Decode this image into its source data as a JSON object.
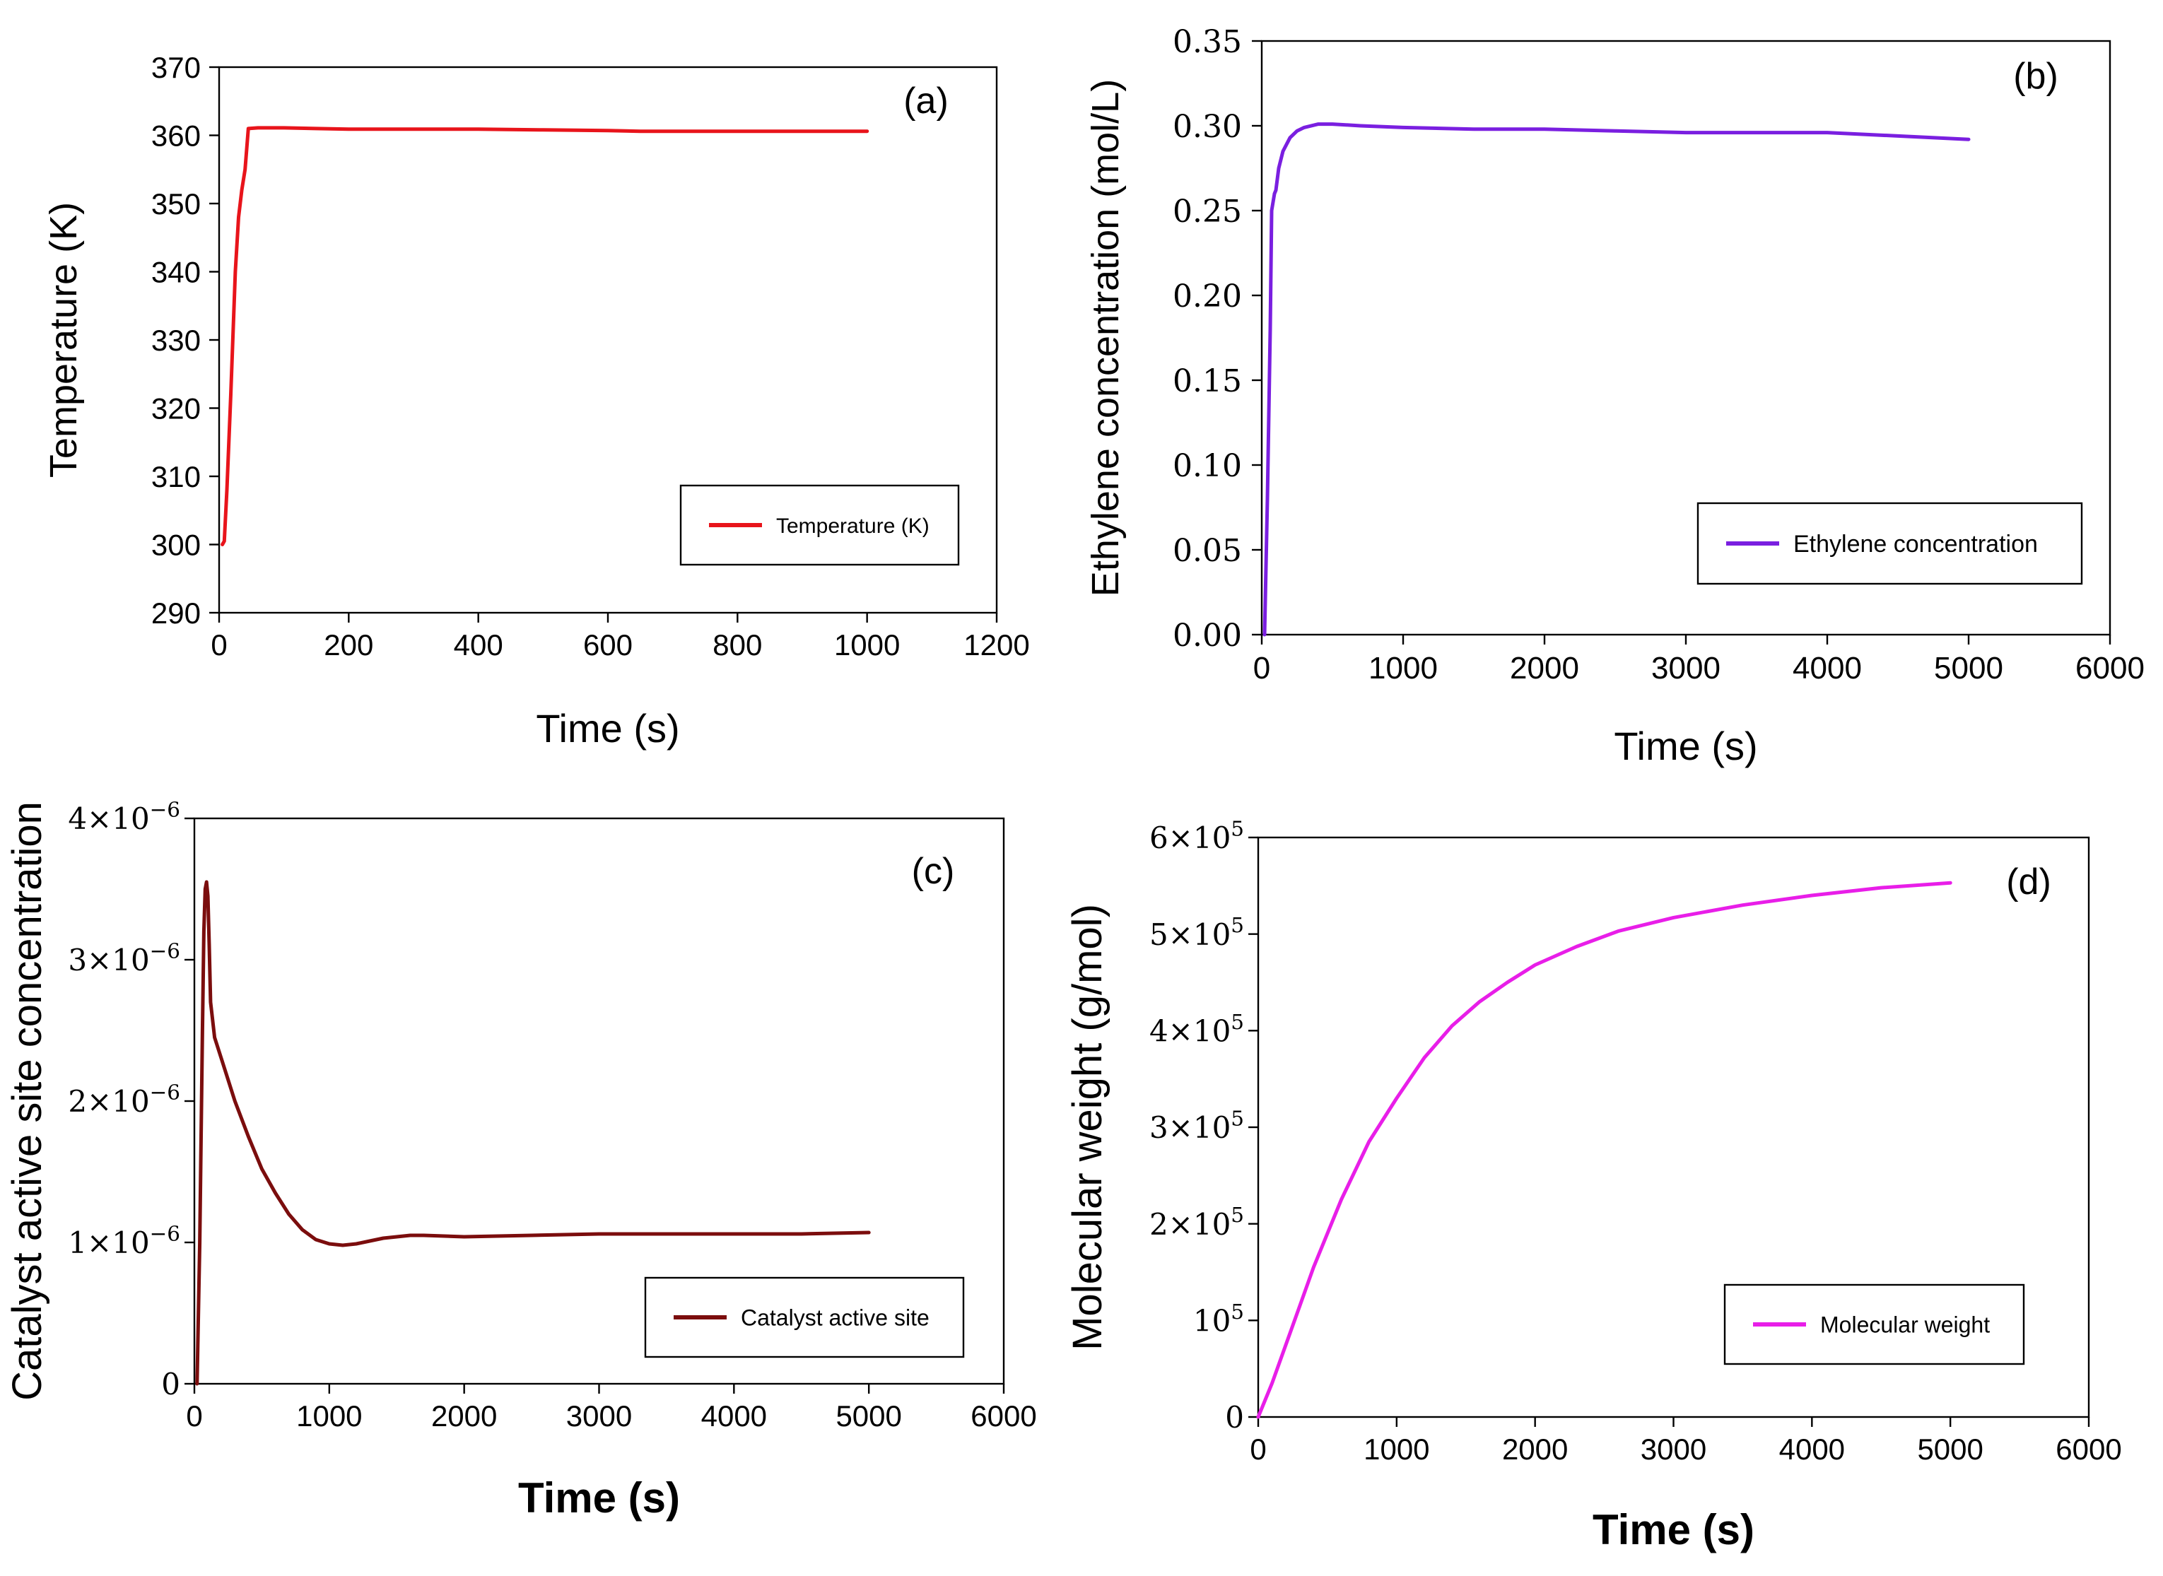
{
  "chart_data": [
    {
      "id": "a",
      "type": "line",
      "panel_label": "(a)",
      "title": "",
      "xlabel": "Time (s)",
      "ylabel": "Temperature (K)",
      "xlim": [
        0,
        1200
      ],
      "ylim": [
        290,
        370
      ],
      "x_ticks": [
        0,
        200,
        400,
        600,
        800,
        1000,
        1200
      ],
      "y_ticks": [
        290,
        300,
        310,
        320,
        330,
        340,
        350,
        360,
        370
      ],
      "y_tick_labels": [
        "290",
        "300",
        "310",
        "320",
        "330",
        "340",
        "350",
        "360",
        "370"
      ],
      "legend_position": "center-right",
      "grid": false,
      "series": [
        {
          "name": "Temperature (K)",
          "color": "#e8141b",
          "x": [
            5,
            8,
            12,
            18,
            25,
            30,
            35,
            40,
            45,
            60,
            100,
            150,
            200,
            300,
            400,
            500,
            600,
            650,
            700,
            800,
            900,
            1000
          ],
          "y": [
            300,
            300.5,
            308,
            322,
            340,
            348,
            352,
            355,
            361,
            361.1,
            361.1,
            361,
            360.9,
            360.9,
            360.9,
            360.8,
            360.7,
            360.6,
            360.6,
            360.6,
            360.6,
            360.6
          ]
        }
      ]
    },
    {
      "id": "b",
      "type": "line",
      "panel_label": "(b)",
      "title": "",
      "xlabel": "Time (s)",
      "ylabel": "Ethylene concentration (mol/L)",
      "xlim": [
        0,
        6000
      ],
      "ylim": [
        0,
        0.35
      ],
      "x_ticks": [
        0,
        1000,
        2000,
        3000,
        4000,
        5000,
        6000
      ],
      "y_ticks": [
        0,
        0.05,
        0.1,
        0.15,
        0.2,
        0.25,
        0.3,
        0.35
      ],
      "y_tick_labels": [
        "0.00",
        "0.05",
        "0.10",
        "0.15",
        "0.20",
        "0.25",
        "0.30",
        "0.35"
      ],
      "legend_position": "lower-right",
      "grid": false,
      "series": [
        {
          "name": "Ethylene concentration",
          "color": "#7a1fe0",
          "x": [
            20,
            40,
            60,
            70,
            80,
            90,
            100,
            120,
            150,
            200,
            250,
            300,
            400,
            500,
            700,
            1000,
            1500,
            2000,
            2500,
            3000,
            3500,
            4000,
            4500,
            5000
          ],
          "y": [
            0,
            0.08,
            0.18,
            0.25,
            0.255,
            0.26,
            0.262,
            0.275,
            0.285,
            0.293,
            0.297,
            0.299,
            0.301,
            0.301,
            0.3,
            0.299,
            0.298,
            0.298,
            0.297,
            0.296,
            0.296,
            0.296,
            0.294,
            0.292
          ]
        }
      ]
    },
    {
      "id": "c",
      "type": "line",
      "panel_label": "(c)",
      "title": "",
      "xlabel": "Time (s)",
      "ylabel": "Catalyst active site concentration",
      "xlim": [
        0,
        6000
      ],
      "ylim": [
        0,
        4e-06
      ],
      "x_ticks": [
        0,
        1000,
        2000,
        3000,
        4000,
        5000,
        6000
      ],
      "y_ticks": [
        0,
        1e-06,
        2e-06,
        3e-06,
        4e-06
      ],
      "y_tick_mantissa": [
        "0",
        "1×10",
        "2×10",
        "3×10",
        "4×10"
      ],
      "y_tick_exponent": "−6",
      "legend_position": "lower-right",
      "grid": false,
      "series": [
        {
          "name": "Catalyst active site",
          "color": "#7b0d0d",
          "x": [
            20,
            40,
            60,
            70,
            80,
            90,
            100,
            110,
            120,
            150,
            200,
            300,
            400,
            500,
            600,
            700,
            800,
            900,
            1000,
            1100,
            1200,
            1300,
            1400,
            1500,
            1600,
            1700,
            2000,
            2500,
            3000,
            3500,
            4000,
            4500,
            5000
          ],
          "y": [
            0,
            1e-06,
            2.5e-06,
            3.2e-06,
            3.5e-06,
            3.55e-06,
            3.45e-06,
            3.1e-06,
            2.7e-06,
            2.45e-06,
            2.3e-06,
            2e-06,
            1.75e-06,
            1.52e-06,
            1.35e-06,
            1.2e-06,
            1.09e-06,
            1.02e-06,
            9.9e-07,
            9.8e-07,
            9.9e-07,
            1.01e-06,
            1.03e-06,
            1.04e-06,
            1.05e-06,
            1.05e-06,
            1.04e-06,
            1.05e-06,
            1.06e-06,
            1.06e-06,
            1.06e-06,
            1.06e-06,
            1.07e-06
          ]
        }
      ]
    },
    {
      "id": "d",
      "type": "line",
      "panel_label": "(d)",
      "title": "",
      "xlabel": "Time (s)",
      "ylabel": "Molecular weight (g/mol)",
      "xlim": [
        0,
        6000
      ],
      "ylim": [
        0,
        600000
      ],
      "x_ticks": [
        0,
        1000,
        2000,
        3000,
        4000,
        5000,
        6000
      ],
      "y_ticks": [
        0,
        100000,
        200000,
        300000,
        400000,
        500000,
        600000
      ],
      "y_tick_mantissa": [
        "0",
        "10",
        "2×10",
        "3×10",
        "4×10",
        "5×10",
        "6×10"
      ],
      "y_tick_exponent": "5",
      "legend_position": "lower-right",
      "grid": false,
      "series": [
        {
          "name": "Molecular weight",
          "color": "#e81ee8",
          "x": [
            0,
            100,
            200,
            300,
            400,
            500,
            600,
            800,
            1000,
            1200,
            1400,
            1600,
            1800,
            2000,
            2300,
            2600,
            3000,
            3500,
            4000,
            4500,
            5000
          ],
          "y": [
            0,
            35000,
            75000,
            115000,
            155000,
            190000,
            225000,
            285000,
            330000,
            372000,
            405000,
            430000,
            450000,
            468000,
            487000,
            503000,
            517000,
            530000,
            540000,
            548000,
            553000
          ]
        }
      ]
    }
  ]
}
